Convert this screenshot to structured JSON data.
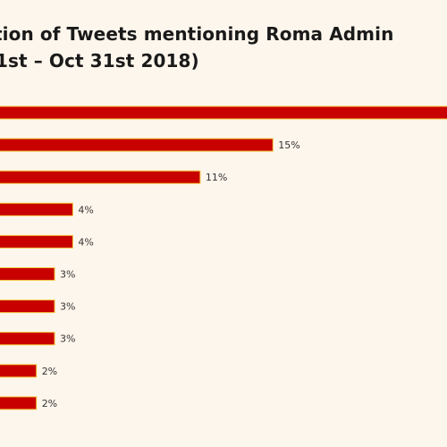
{
  "chart_data": {
    "type": "bar",
    "orientation": "horizontal",
    "title_lines": [
      "tion of Tweets mentioning Roma Admin",
      "1st – Oct 31st 2018)"
    ],
    "values": [
      28,
      15,
      11,
      4,
      4,
      3,
      3,
      3,
      2,
      2
    ],
    "value_labels": [
      "",
      "15%",
      "11%",
      "4%",
      "4%",
      "3%",
      "3%",
      "3%",
      "2%",
      "2%"
    ],
    "bar_color": "#c80000",
    "bar_edge_color": "#f2c23a",
    "background_color": "#fdf6ec",
    "grid": false
  }
}
